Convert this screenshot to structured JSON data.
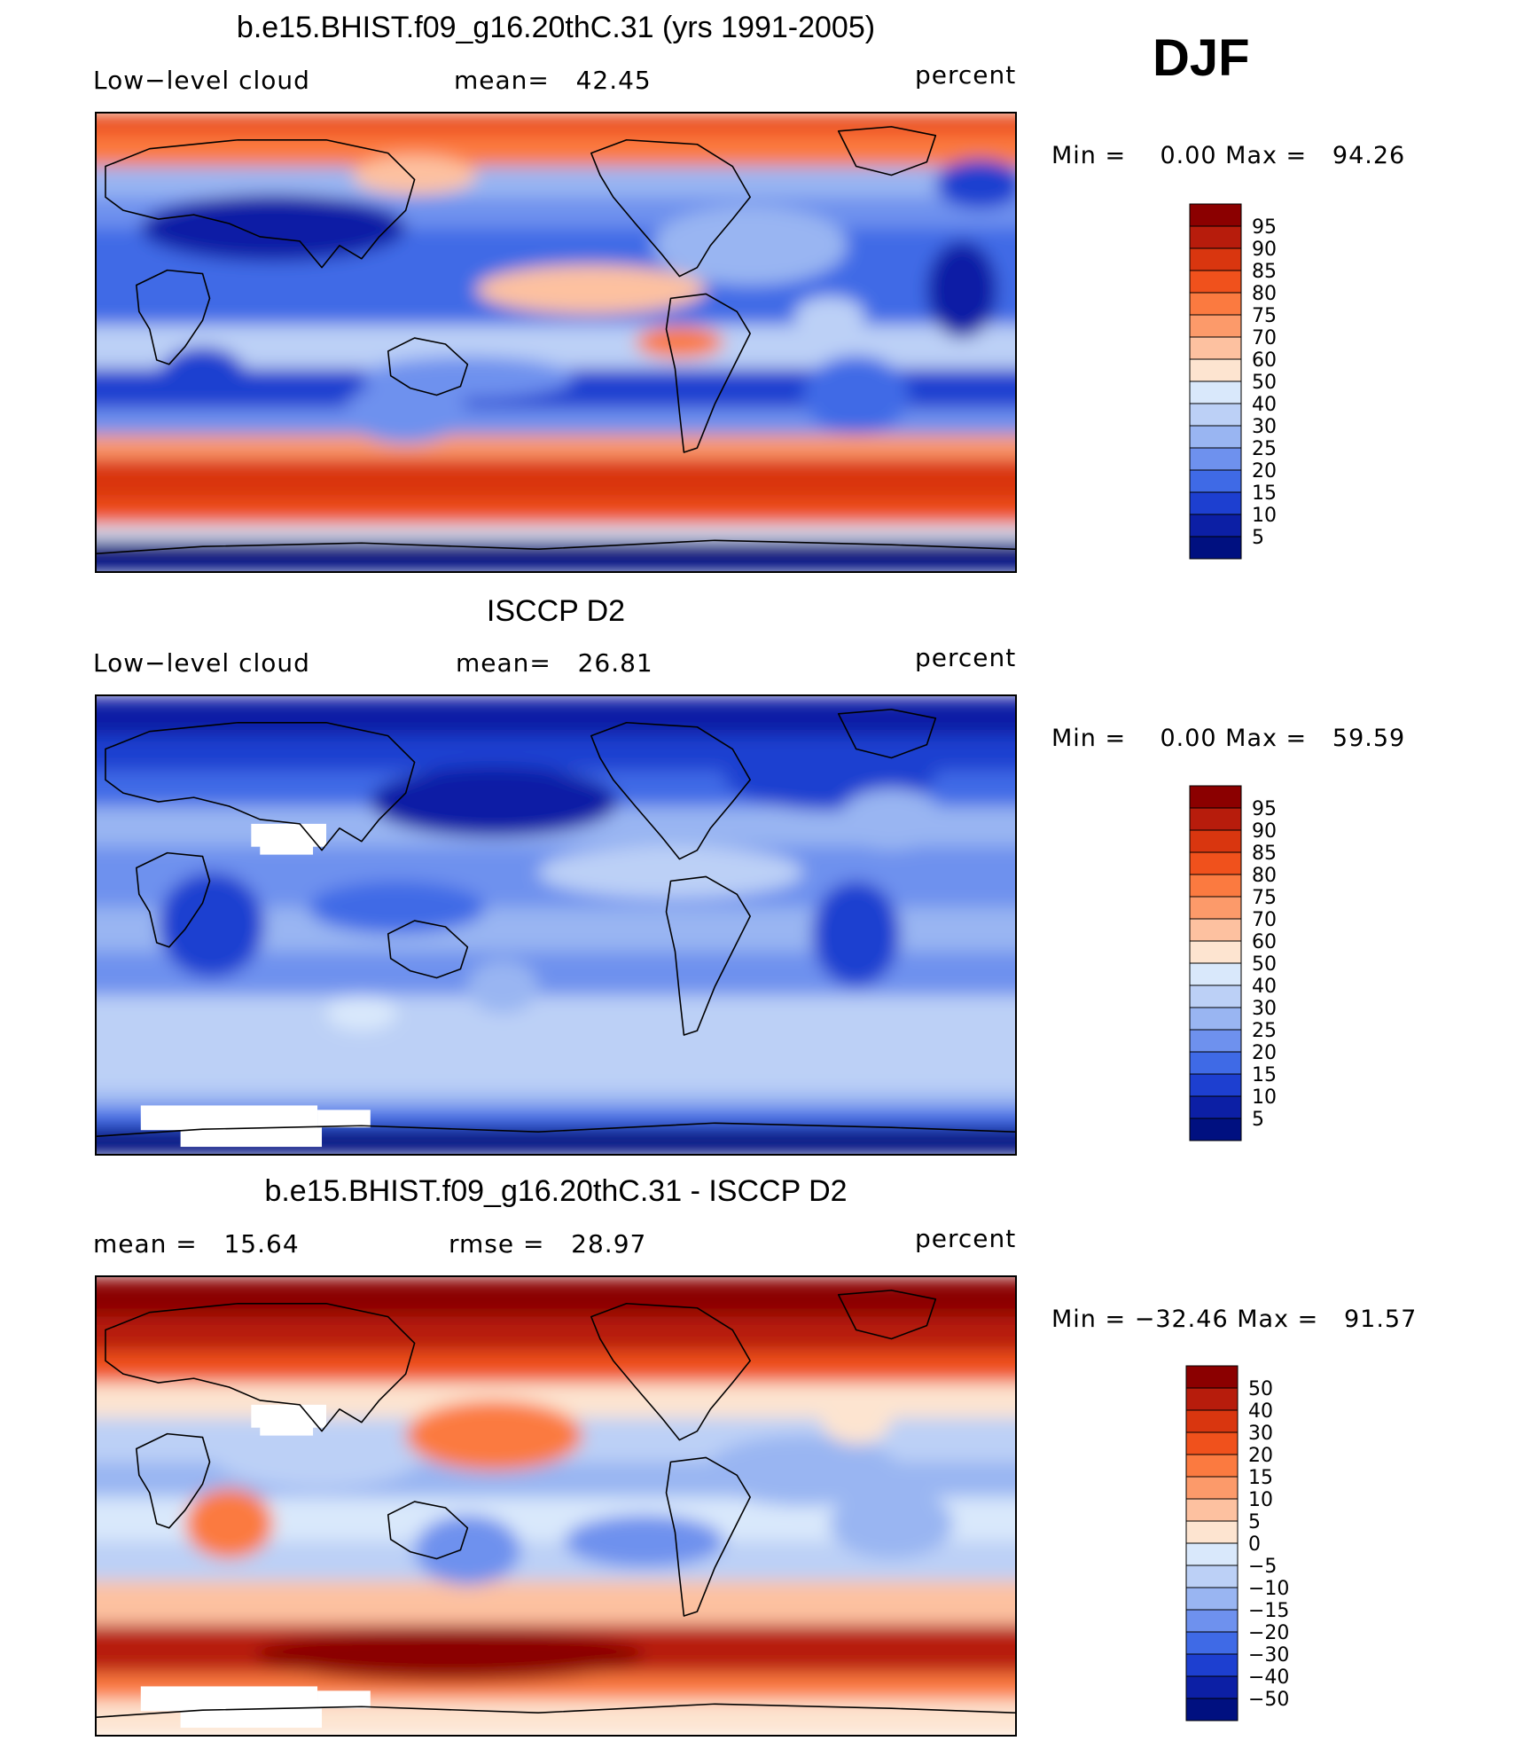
{
  "season": "DJF",
  "panels": [
    {
      "title": "b.e15.BHIST.f09_g16.20thC.31 (yrs 1991-2005)",
      "left_label": "Low−level cloud",
      "center_label": "mean=   42.45",
      "right_label": "percent",
      "minmax": "Min =    0.00 Max =   94.26",
      "variant": "model"
    },
    {
      "title": "ISCCP D2",
      "left_label": "Low−level cloud",
      "center_label": "mean=   26.81",
      "right_label": "percent",
      "minmax": "Min =    0.00 Max =   59.59",
      "variant": "obs"
    },
    {
      "title": "b.e15.BHIST.f09_g16.20thC.31 - ISCCP D2",
      "left_label": "mean =   15.64",
      "center_label": "rmse =   28.97",
      "right_label": "percent",
      "minmax": "Min = −32.46 Max =   91.57",
      "variant": "diff"
    }
  ],
  "chart_data": [
    {
      "type": "heatmap",
      "title": "b.e15.BHIST.f09_g16.20thC.31 (yrs 1991-2005)",
      "variable": "Low-level cloud",
      "units": "percent",
      "mean": 42.45,
      "min": 0.0,
      "max": 94.26,
      "colorbar_levels": [
        "95",
        "90",
        "85",
        "80",
        "75",
        "70",
        "60",
        "50",
        "40",
        "30",
        "25",
        "20",
        "15",
        "10",
        "5"
      ],
      "colorbar_colors": [
        "#8b0000",
        "#b71c0c",
        "#d9360f",
        "#f0511c",
        "#fb7a40",
        "#fc9a6a",
        "#fdc1a0",
        "#fde4d0",
        "#d9e8fb",
        "#bcd0f6",
        "#99b5f2",
        "#6e91ee",
        "#3f6ae6",
        "#1d3fd0",
        "#0c1fa5",
        "#001080"
      ]
    },
    {
      "type": "heatmap",
      "title": "ISCCP D2",
      "variable": "Low-level cloud",
      "units": "percent",
      "mean": 26.81,
      "min": 0.0,
      "max": 59.59,
      "colorbar_levels": [
        "95",
        "90",
        "85",
        "80",
        "75",
        "70",
        "60",
        "50",
        "40",
        "30",
        "25",
        "20",
        "15",
        "10",
        "5"
      ],
      "colorbar_colors": [
        "#8b0000",
        "#b71c0c",
        "#d9360f",
        "#f0511c",
        "#fb7a40",
        "#fc9a6a",
        "#fdc1a0",
        "#fde4d0",
        "#d9e8fb",
        "#bcd0f6",
        "#99b5f2",
        "#6e91ee",
        "#3f6ae6",
        "#1d3fd0",
        "#0c1fa5",
        "#001080"
      ]
    },
    {
      "type": "heatmap",
      "title": "b.e15.BHIST.f09_g16.20thC.31 - ISCCP D2",
      "units": "percent",
      "mean": 15.64,
      "rmse": 28.97,
      "min": -32.46,
      "max": 91.57,
      "colorbar_levels": [
        "50",
        "40",
        "30",
        "20",
        "15",
        "10",
        "5",
        "0",
        "−5",
        "−10",
        "−15",
        "−20",
        "−30",
        "−40",
        "−50"
      ],
      "colorbar_colors": [
        "#8b0000",
        "#b71c0c",
        "#d9360f",
        "#f0511c",
        "#fb7a40",
        "#fc9a6a",
        "#fdc1a0",
        "#fde4d0",
        "#d9e8fb",
        "#bcd0f6",
        "#99b5f2",
        "#6e91ee",
        "#3f6ae6",
        "#1d3fd0",
        "#0c1fa5",
        "#001080"
      ]
    }
  ]
}
